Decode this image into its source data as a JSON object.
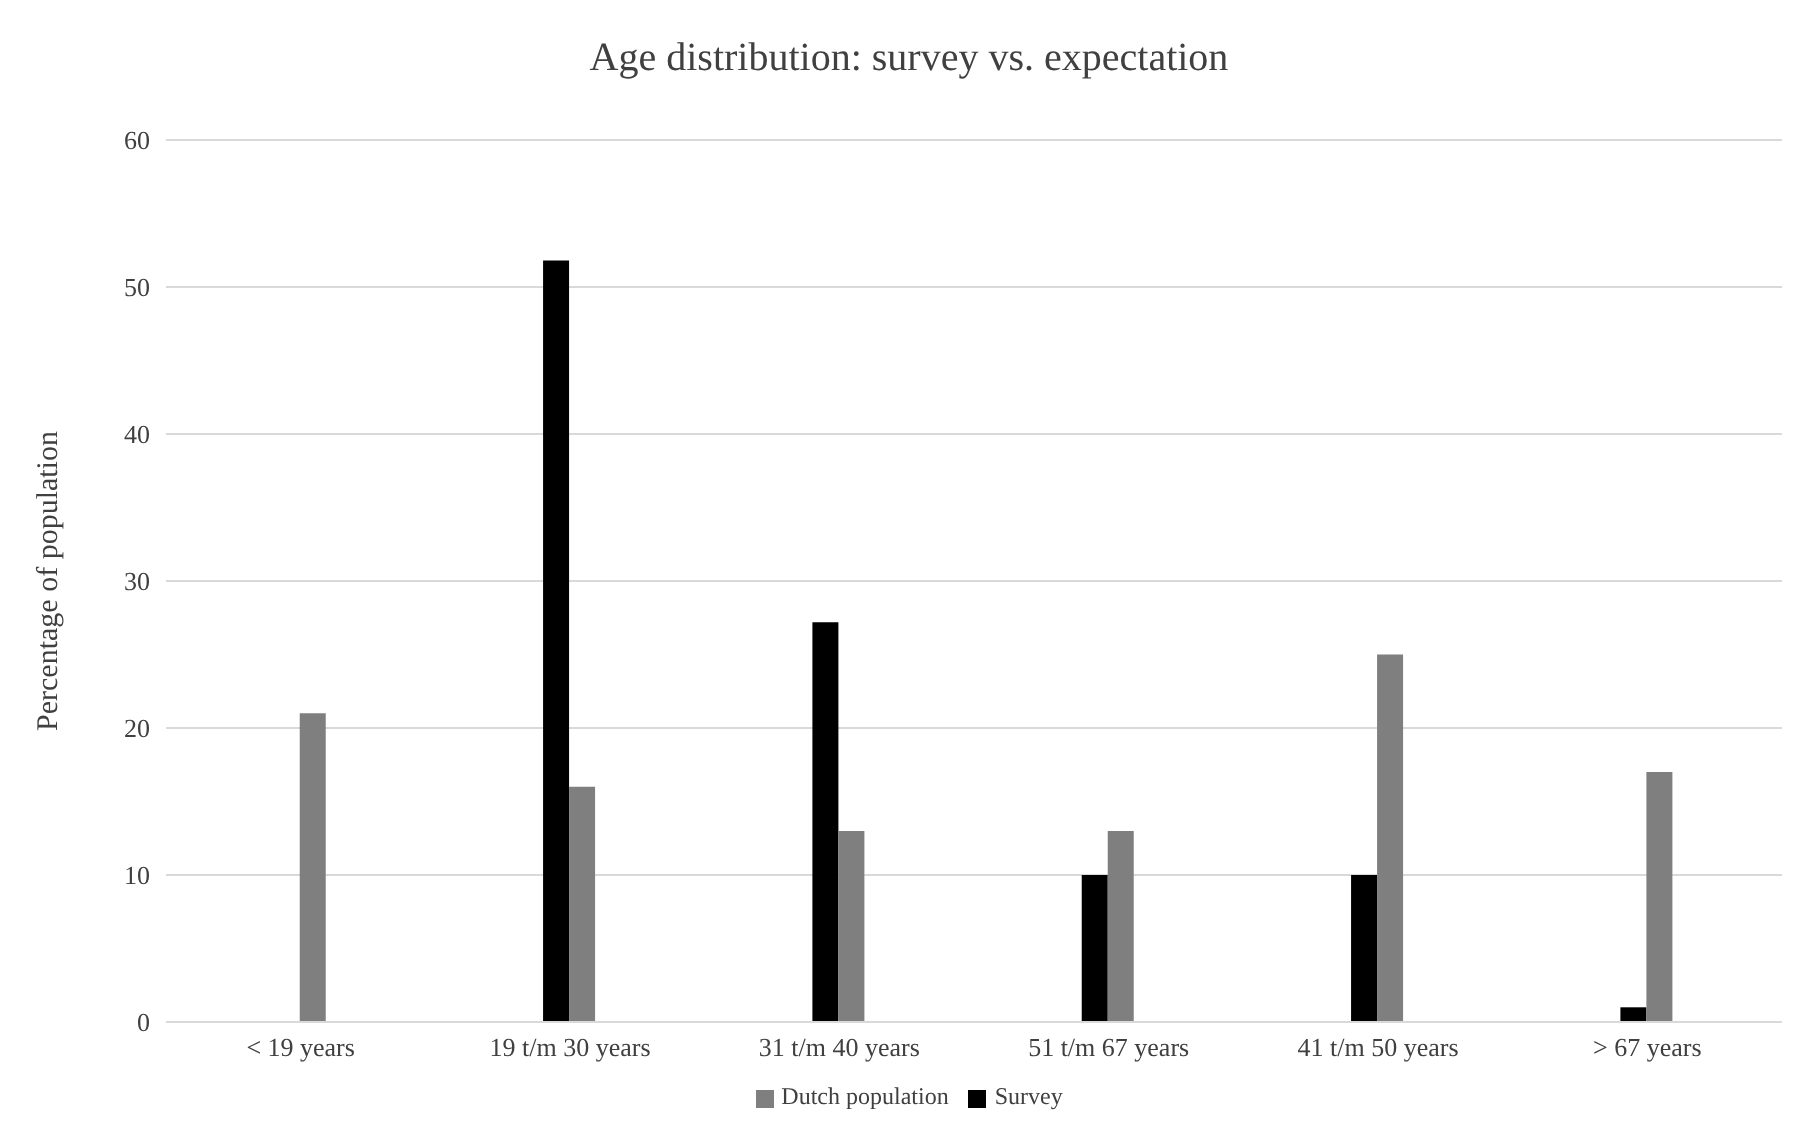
{
  "chart_data": {
    "type": "bar",
    "title": "Age distribution: survey vs. expectation",
    "ylabel": "Percentage of population",
    "categories": [
      "< 19 years",
      "19 t/m 30 years",
      "31 t/m 40 years",
      "51 t/m 67 years",
      "41 t/m 50 years",
      "> 67 years"
    ],
    "series": [
      {
        "name": "Survey",
        "color": "#000000",
        "values": [
          0,
          51.8,
          27.2,
          10,
          10,
          1
        ]
      },
      {
        "name": "Dutch population",
        "color": "#7f7f7f",
        "values": [
          21,
          16,
          13,
          13,
          25,
          17
        ]
      }
    ],
    "ylim": [
      0,
      60
    ],
    "yticks": [
      0,
      10,
      20,
      30,
      40,
      50,
      60
    ],
    "grid": "y",
    "legend": "bottom"
  }
}
